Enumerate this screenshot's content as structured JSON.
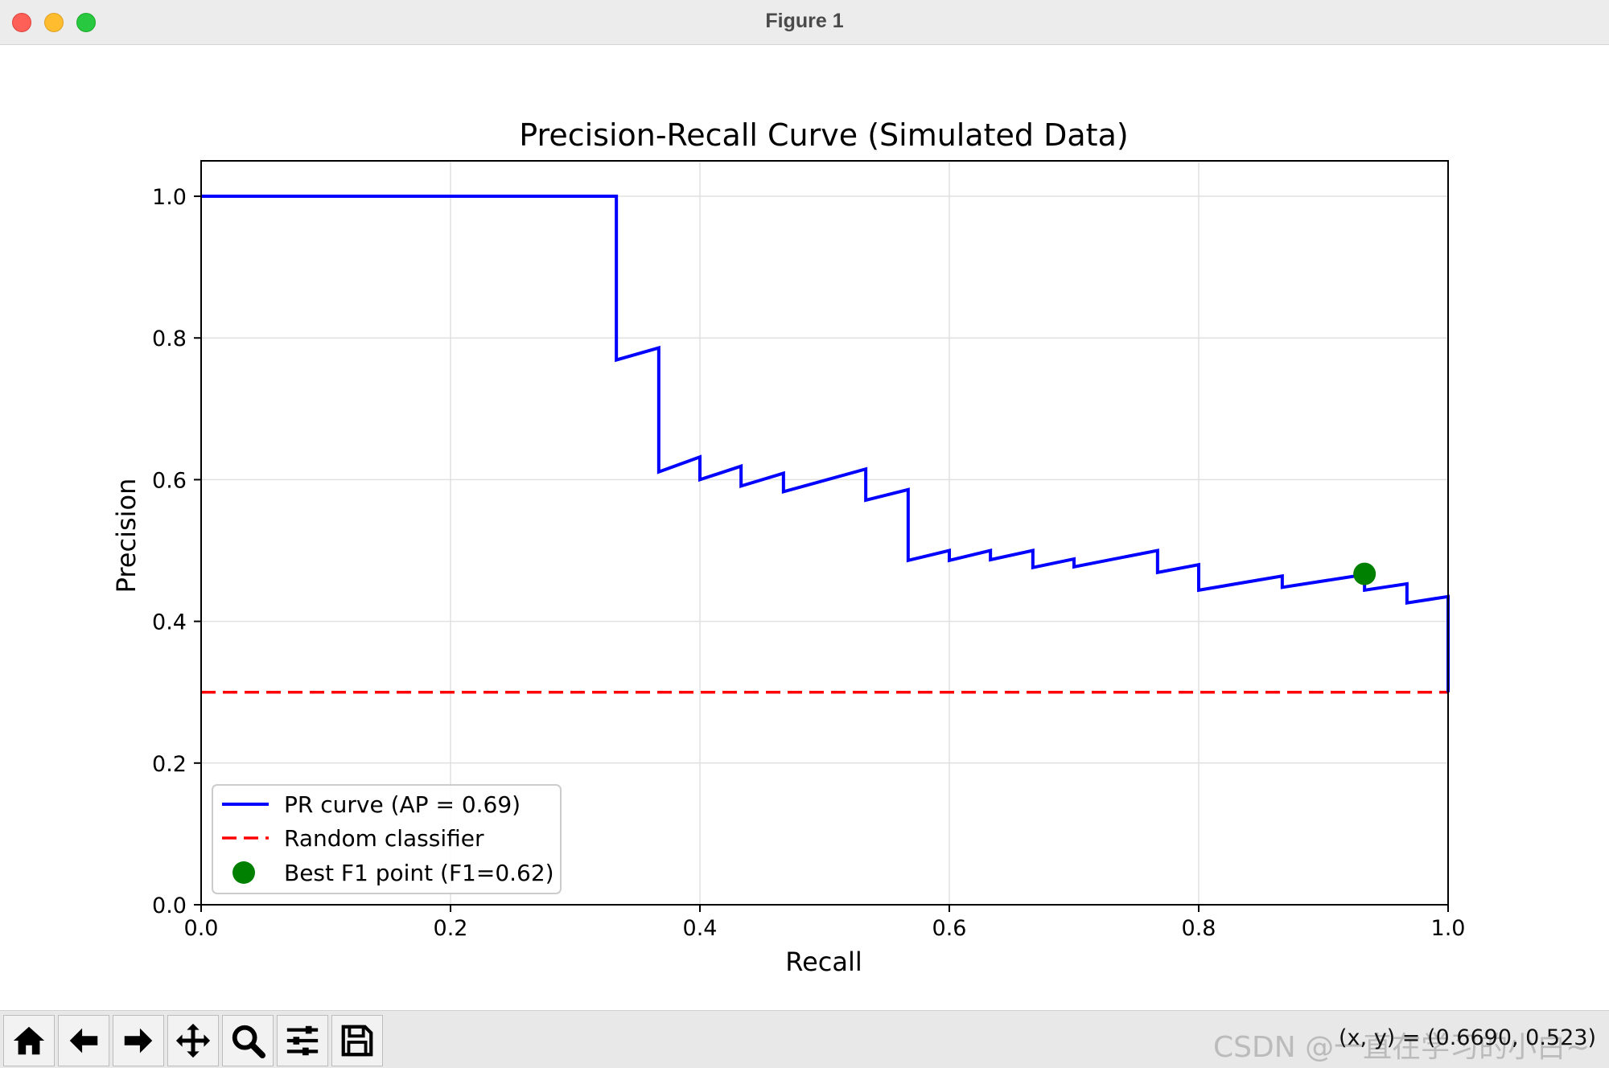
{
  "window": {
    "title": "Figure 1"
  },
  "colors": {
    "curve": "#0000ff",
    "baseline": "#ff0000",
    "best_point": "#008000",
    "grid": "#e0e0e0"
  },
  "chart_data": {
    "type": "line",
    "title": "Precision-Recall Curve (Simulated Data)",
    "xlabel": "Recall",
    "ylabel": "Precision",
    "xlim": [
      0.0,
      1.0
    ],
    "ylim": [
      0.0,
      1.05
    ],
    "xticks": [
      0.0,
      0.2,
      0.4,
      0.6,
      0.8,
      1.0
    ],
    "yticks": [
      0.0,
      0.2,
      0.4,
      0.6,
      0.8,
      1.0
    ],
    "xtick_labels": [
      "0.0",
      "0.2",
      "0.4",
      "0.6",
      "0.8",
      "1.0"
    ],
    "ytick_labels": [
      "0.0",
      "0.2",
      "0.4",
      "0.6",
      "0.8",
      "1.0"
    ],
    "grid": true,
    "legend_position": "lower-left",
    "series": [
      {
        "name": "PR curve (AP = 0.69)",
        "style": "solid",
        "color": "#0000ff",
        "points": [
          [
            0.0,
            1.0
          ],
          [
            0.333,
            1.0
          ],
          [
            0.333,
            0.769
          ],
          [
            0.367,
            0.786
          ],
          [
            0.367,
            0.611
          ],
          [
            0.4,
            0.632
          ],
          [
            0.4,
            0.6
          ],
          [
            0.433,
            0.619
          ],
          [
            0.433,
            0.591
          ],
          [
            0.467,
            0.609
          ],
          [
            0.467,
            0.583
          ],
          [
            0.533,
            0.615
          ],
          [
            0.533,
            0.571
          ],
          [
            0.567,
            0.586
          ],
          [
            0.567,
            0.486
          ],
          [
            0.6,
            0.5
          ],
          [
            0.6,
            0.486
          ],
          [
            0.633,
            0.5
          ],
          [
            0.633,
            0.487
          ],
          [
            0.667,
            0.5
          ],
          [
            0.667,
            0.476
          ],
          [
            0.7,
            0.488
          ],
          [
            0.7,
            0.477
          ],
          [
            0.767,
            0.5
          ],
          [
            0.767,
            0.469
          ],
          [
            0.8,
            0.48
          ],
          [
            0.8,
            0.444
          ],
          [
            0.867,
            0.464
          ],
          [
            0.867,
            0.448
          ],
          [
            0.933,
            0.466
          ],
          [
            0.933,
            0.444
          ],
          [
            0.967,
            0.453
          ],
          [
            0.967,
            0.426
          ],
          [
            1.0,
            0.435
          ],
          [
            1.0,
            0.3
          ]
        ]
      },
      {
        "name": "Random classifier",
        "style": "dashed",
        "color": "#ff0000",
        "points": [
          [
            0.0,
            0.3
          ],
          [
            1.0,
            0.3
          ]
        ]
      },
      {
        "name": "Best F1 point (F1=0.62)",
        "style": "marker",
        "color": "#008000",
        "points": [
          [
            0.933,
            0.467
          ]
        ]
      }
    ]
  },
  "toolbar": {
    "buttons": [
      {
        "name": "home-button",
        "icon": "home-icon"
      },
      {
        "name": "back-button",
        "icon": "arrow-left-icon"
      },
      {
        "name": "forward-button",
        "icon": "arrow-right-icon"
      },
      {
        "name": "pan-button",
        "icon": "move-icon"
      },
      {
        "name": "zoom-button",
        "icon": "magnifier-icon"
      },
      {
        "name": "configure-subplots-button",
        "icon": "sliders-icon"
      },
      {
        "name": "save-button",
        "icon": "floppy-disk-icon"
      }
    ],
    "coordinates": "(x, y) = (0.6690, 0.523)",
    "watermark": "CSDN @一直在学习的小白~"
  }
}
